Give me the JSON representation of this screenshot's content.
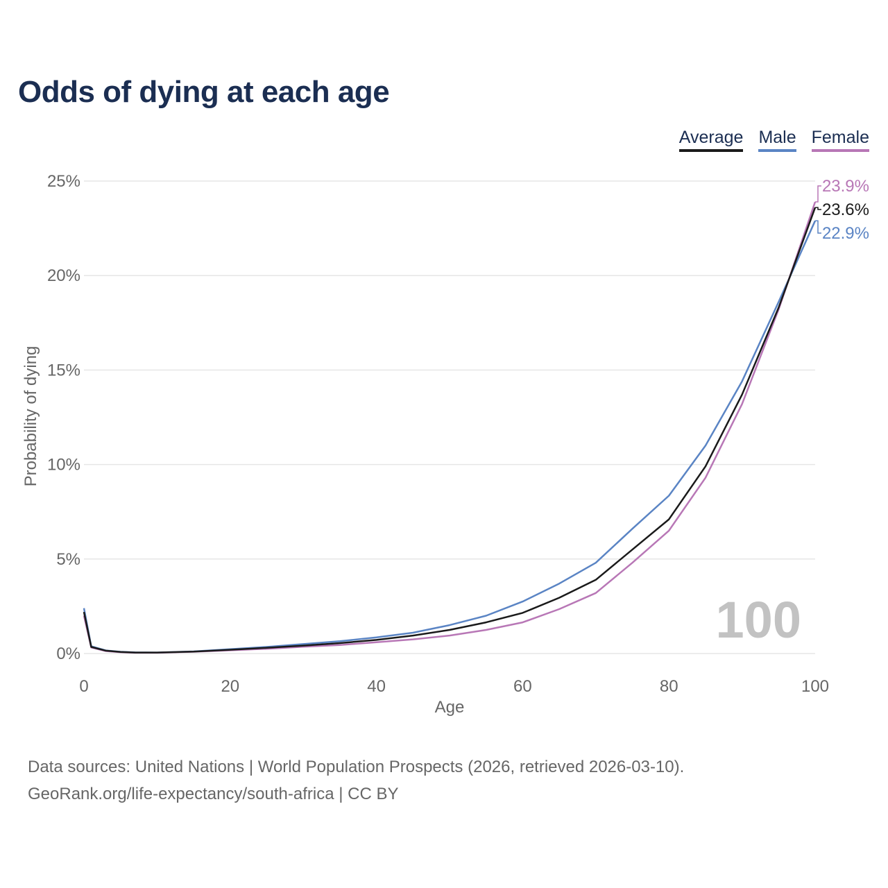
{
  "title": "Odds of dying at each age",
  "legend": {
    "average": "Average",
    "male": "Male",
    "female": "Female"
  },
  "watermark": "100",
  "footer": {
    "sources": "Data sources: United Nations | World Population Prospects (2026, retrieved 2026-03-10).",
    "link": "GeoRank.org/life-expectancy/south-africa | CC BY"
  },
  "colors": {
    "average": "#1a1a1a",
    "male": "#5a84c4",
    "female": "#b877b6",
    "title": "#1b2e52",
    "axis_text": "#666666",
    "grid": "#e6e6e6",
    "watermark": "#c2c2c2"
  },
  "chart_data": {
    "type": "line",
    "title": "Odds of dying at each age",
    "xlabel": "Age",
    "ylabel": "Probability of dying",
    "xlim": [
      0,
      100
    ],
    "ylim": [
      0,
      25
    ],
    "x_ticks": [
      0,
      20,
      40,
      60,
      80,
      100
    ],
    "y_ticks": [
      0,
      5,
      10,
      15,
      20,
      25
    ],
    "y_tick_labels": [
      "0%",
      "5%",
      "10%",
      "15%",
      "20%",
      "25%"
    ],
    "grid": true,
    "legend_position": "top-right",
    "end_labels": {
      "female": "23.9%",
      "average": "23.6%",
      "male": "22.9%"
    },
    "x": [
      0,
      1,
      3,
      5,
      7,
      10,
      15,
      20,
      25,
      30,
      35,
      40,
      45,
      50,
      55,
      60,
      65,
      70,
      75,
      80,
      85,
      90,
      95,
      100
    ],
    "series": [
      {
        "name": "Average",
        "key": "average",
        "values": [
          2.2,
          0.35,
          0.15,
          0.08,
          0.05,
          0.05,
          0.1,
          0.2,
          0.3,
          0.42,
          0.55,
          0.72,
          0.95,
          1.25,
          1.65,
          2.15,
          2.95,
          3.9,
          5.5,
          7.1,
          9.9,
          13.7,
          18.3,
          23.6
        ]
      },
      {
        "name": "Male",
        "key": "male",
        "values": [
          2.4,
          0.38,
          0.16,
          0.09,
          0.06,
          0.05,
          0.11,
          0.23,
          0.35,
          0.5,
          0.65,
          0.85,
          1.1,
          1.5,
          2.0,
          2.75,
          3.7,
          4.8,
          6.6,
          8.35,
          11.0,
          14.4,
          18.6,
          22.9
        ]
      },
      {
        "name": "Female",
        "key": "female",
        "values": [
          2.0,
          0.32,
          0.13,
          0.07,
          0.04,
          0.04,
          0.09,
          0.17,
          0.25,
          0.36,
          0.45,
          0.6,
          0.75,
          0.95,
          1.25,
          1.65,
          2.35,
          3.2,
          4.8,
          6.5,
          9.3,
          13.2,
          18.2,
          23.9
        ]
      }
    ]
  }
}
